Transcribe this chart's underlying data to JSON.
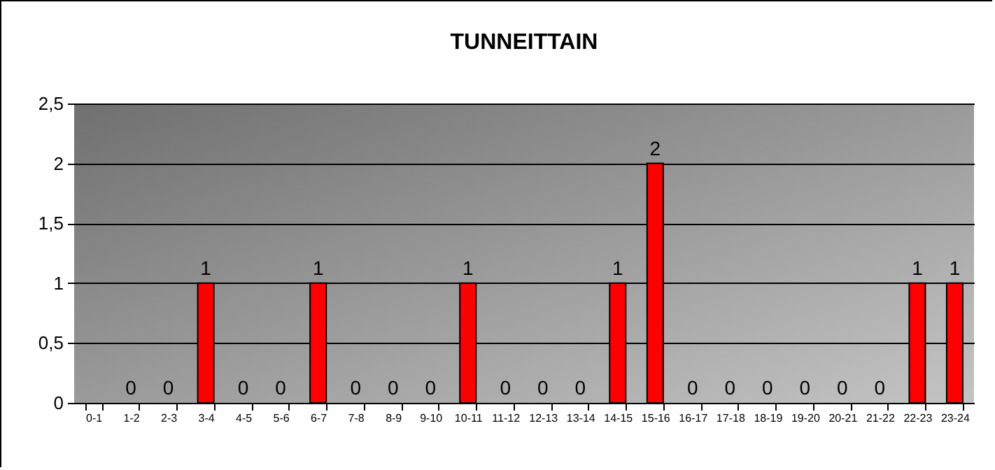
{
  "chart_data": {
    "type": "bar",
    "title": "TUNNEITTAIN",
    "categories": [
      "0-1",
      "1-2",
      "2-3",
      "3-4",
      "4-5",
      "5-6",
      "6-7",
      "7-8",
      "8-9",
      "9-10",
      "10-11",
      "11-12",
      "12-13",
      "13-14",
      "14-15",
      "15-16",
      "16-17",
      "17-18",
      "18-19",
      "19-20",
      "20-21",
      "21-22",
      "22-23",
      "23-24"
    ],
    "values": [
      null,
      0,
      0,
      1,
      0,
      0,
      1,
      0,
      0,
      0,
      1,
      0,
      0,
      0,
      1,
      2,
      0,
      0,
      0,
      0,
      0,
      0,
      1,
      1
    ],
    "color": "#ff0000",
    "ylim": [
      0,
      2.5
    ],
    "yticks": [
      0,
      {
        "value": 0.5,
        "label": "0,5"
      },
      1,
      {
        "value": 1.5,
        "label": "1,5"
      },
      2,
      {
        "value": 2.5,
        "label": "2,5"
      }
    ],
    "grid": "y",
    "data_labels": true
  }
}
